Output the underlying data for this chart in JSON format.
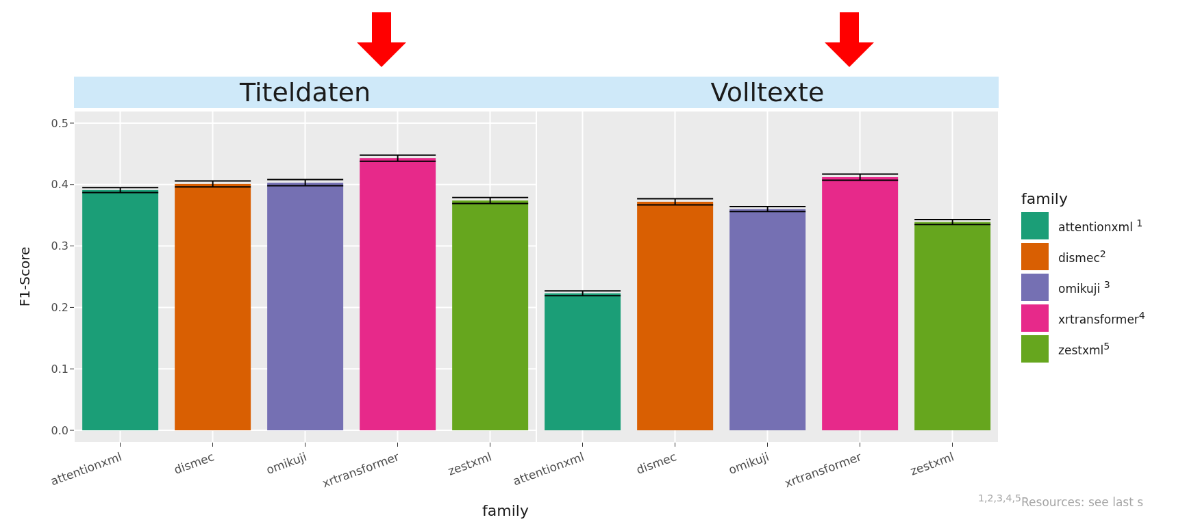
{
  "chart_data": [
    {
      "type": "bar",
      "title": "Titeldaten",
      "ylabel": "F1-Score",
      "xlabel": "family",
      "categories": [
        "attentionxml",
        "dismec",
        "omikuji",
        "xrtransformer",
        "zestxml"
      ],
      "stacked": true,
      "ylim": [
        -0.02,
        0.52
      ],
      "yticks": [
        {
          "value": 0,
          "label": "0.0"
        },
        0.1,
        0.2,
        0.3,
        0.4,
        0.5
      ],
      "grid": true,
      "tick_labels": "xy",
      "series": [
        {
          "color": "#1b9e77",
          "values": [
            0.391,
            null,
            null,
            null,
            null
          ],
          "errors": [
            0.004,
            null,
            null,
            null,
            null
          ]
        },
        {
          "color": "#d95f02",
          "values": [
            null,
            0.401,
            null,
            null,
            null
          ],
          "errors": [
            null,
            0.005,
            null,
            null,
            null
          ]
        },
        {
          "color": "#7570b3",
          "values": [
            null,
            null,
            0.403,
            null,
            null
          ],
          "errors": [
            null,
            null,
            0.005,
            null,
            null
          ]
        },
        {
          "color": "#e7298a",
          "values": [
            null,
            null,
            null,
            0.443,
            null
          ],
          "errors": [
            null,
            null,
            null,
            0.005,
            null
          ]
        },
        {
          "color": "#66a61e",
          "values": [
            null,
            null,
            null,
            null,
            0.374
          ],
          "errors": [
            null,
            null,
            null,
            null,
            0.005
          ]
        }
      ]
    },
    {
      "type": "bar",
      "title": "Volltexte",
      "legend_title": "family",
      "legend": "right",
      "categories": [
        "attentionxml",
        "dismec",
        "omikuji",
        "xrtransformer",
        "zestxml"
      ],
      "stacked": true,
      "ylim": [
        -0.02,
        0.52
      ],
      "yticks": [
        0,
        0.1,
        0.2,
        0.3,
        0.4,
        0.5
      ],
      "grid": true,
      "tick_labels": "x",
      "annotations": [
        "$^{1,2,3,4,5}$Resources: see last s"
      ],
      "series": [
        {
          "name": "attentionxml $^{1}$",
          "color": "#1b9e77",
          "values": [
            0.223,
            null,
            null,
            null,
            null
          ],
          "errors": [
            0.004,
            null,
            null,
            null,
            null
          ]
        },
        {
          "name": "dismec$^{2}$",
          "color": "#d95f02",
          "values": [
            null,
            0.372,
            null,
            null,
            null
          ],
          "errors": [
            null,
            0.005,
            null,
            null,
            null
          ]
        },
        {
          "name": "omikuji $^{3}$",
          "color": "#7570b3",
          "values": [
            null,
            null,
            0.36,
            null,
            null
          ],
          "errors": [
            null,
            null,
            0.004,
            null,
            null
          ]
        },
        {
          "name": "xrtransformer$^{4}$",
          "color": "#e7298a",
          "values": [
            null,
            null,
            null,
            0.412,
            null
          ],
          "errors": [
            null,
            null,
            null,
            0.005,
            null
          ]
        },
        {
          "name": "zestxml$^{5}$",
          "color": "#66a61e",
          "values": [
            null,
            null,
            null,
            null,
            0.339
          ],
          "errors": [
            null,
            null,
            null,
            null,
            0.004
          ]
        }
      ]
    }
  ]
}
